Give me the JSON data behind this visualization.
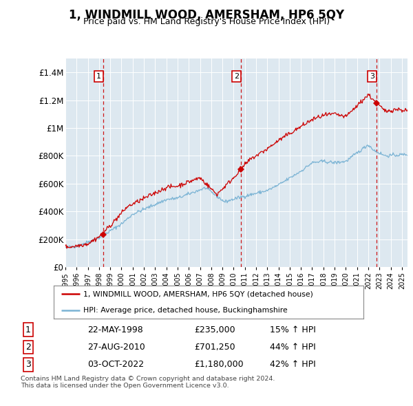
{
  "title": "1, WINDMILL WOOD, AMERSHAM, HP6 5QY",
  "subtitle": "Price paid vs. HM Land Registry's House Price Index (HPI)",
  "sale_info": [
    [
      "1",
      "22-MAY-1998",
      "£235,000",
      "15% ↑ HPI"
    ],
    [
      "2",
      "27-AUG-2010",
      "£701,250",
      "44% ↑ HPI"
    ],
    [
      "3",
      "03-OCT-2022",
      "£1,180,000",
      "42% ↑ HPI"
    ]
  ],
  "legend_line1": "1, WINDMILL WOOD, AMERSHAM, HP6 5QY (detached house)",
  "legend_line2": "HPI: Average price, detached house, Buckinghamshire",
  "footer": "Contains HM Land Registry data © Crown copyright and database right 2024.\nThis data is licensed under the Open Government Licence v3.0.",
  "hpi_color": "#7ab3d4",
  "price_color": "#cc0000",
  "vline_color": "#cc0000",
  "plot_bg_color": "#dde8f0",
  "ylim": [
    0,
    1500000
  ],
  "yticks": [
    0,
    200000,
    400000,
    600000,
    800000,
    1000000,
    1200000,
    1400000
  ],
  "ytick_labels": [
    "£0",
    "£200K",
    "£400K",
    "£600K",
    "£800K",
    "£1M",
    "£1.2M",
    "£1.4M"
  ],
  "sale_years_dec": [
    1998.38,
    2010.65,
    2022.75
  ],
  "sale_prices": [
    235000,
    701250,
    1180000
  ],
  "sale_labels": [
    "1",
    "2",
    "3"
  ]
}
